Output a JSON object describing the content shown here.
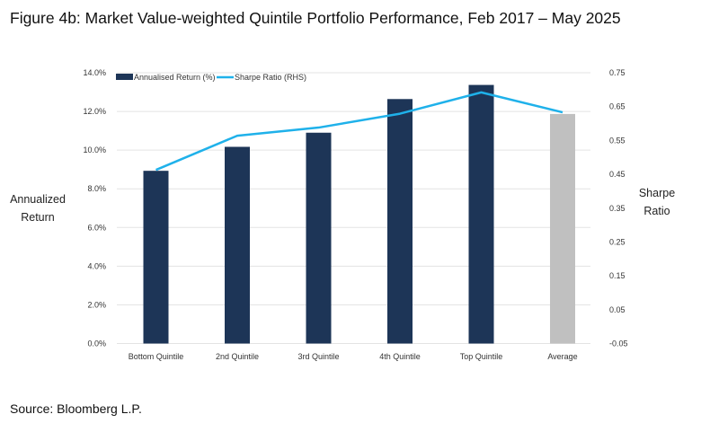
{
  "title": "Figure 4b: Market Value-weighted Quintile Portfolio Performance, Feb 2017 – May 2025",
  "source": "Source: Bloomberg L.P.",
  "chart_data": {
    "type": "bar+line",
    "categories": [
      "Bottom Quintile",
      "2nd Quintile",
      "3rd Quintile",
      "4th Quintile",
      "Top Quintile",
      "Average"
    ],
    "series": [
      {
        "name": "Annualised Return (%)",
        "type": "bar",
        "axis": "left",
        "color": "#1d3557",
        "highlight_color": "#c0c0c0",
        "values": [
          8.93,
          10.17,
          10.9,
          12.64,
          13.37,
          11.87
        ]
      },
      {
        "name": "Sharpe Ratio (RHS)",
        "type": "line",
        "axis": "right",
        "color": "#1fb1ea",
        "values": [
          0.463,
          0.564,
          0.588,
          0.629,
          0.692,
          0.633
        ]
      }
    ],
    "ylabel": "Annualized Return",
    "y2label": "Sharpe Ratio",
    "ylim": [
      0,
      14
    ],
    "y2lim": [
      -0.05,
      0.75
    ],
    "yticks": [
      "0.0%",
      "2.0%",
      "4.0%",
      "6.0%",
      "8.0%",
      "10.0%",
      "12.0%",
      "14.0%"
    ],
    "y2ticks": [
      "-0.05",
      "0.05",
      "0.15",
      "0.25",
      "0.35",
      "0.45",
      "0.55",
      "0.65",
      "0.75"
    ],
    "grid": true,
    "legend": "top-left"
  }
}
